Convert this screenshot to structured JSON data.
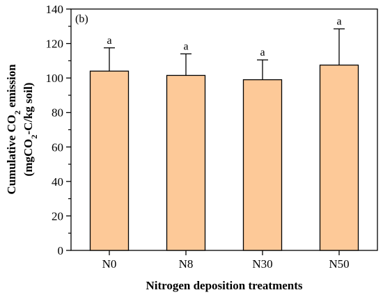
{
  "chart_data": {
    "type": "bar",
    "panel_label": "(b)",
    "categories": [
      "N0",
      "N8",
      "N30",
      "N50"
    ],
    "values": [
      104,
      101.5,
      99,
      107.5
    ],
    "error_upper": [
      117.5,
      114,
      110.5,
      128.5
    ],
    "significance": [
      "a",
      "a",
      "a",
      "a"
    ],
    "xlabel": "Nitrogen deposition treatments",
    "ylabel_line1": "Cumulative CO",
    "ylabel_line1_sub": "2",
    "ylabel_line1_end": " emission",
    "ylabel_line2": "(mgCO",
    "ylabel_line2_sub": "2",
    "ylabel_line2_end": "-C/kg soil)",
    "ylim": [
      0,
      140
    ],
    "yticks": [
      0,
      20,
      40,
      60,
      80,
      100,
      120,
      140
    ],
    "colors": {
      "bar_fill": "#FDC998",
      "bar_stroke": "#000000"
    }
  }
}
